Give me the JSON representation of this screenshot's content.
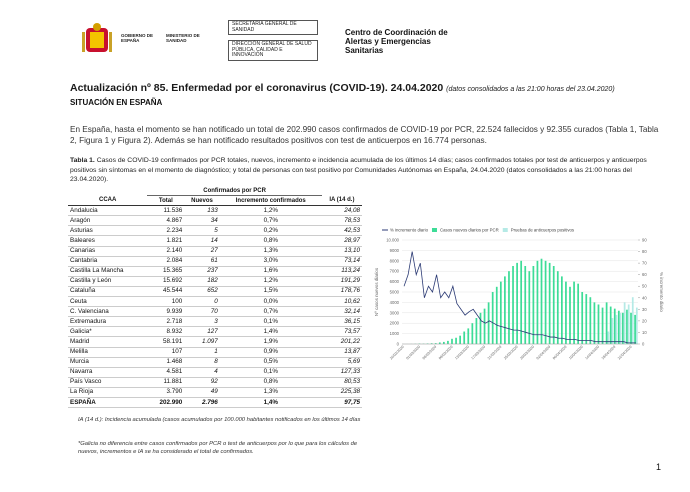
{
  "header": {
    "logo_gov": "GOBIERNO DE ESPAÑA",
    "logo_min": "MINISTERIO DE SANIDAD",
    "box1": "SECRETARIA GENERAL DE SANIDAD",
    "box2": "DIRECCIÓN GENERAL DE SALUD PÚBLICA, CALIDAD E INNOVACIÓN",
    "center": "Centro de Coordinación de Alertas y Emergencias Sanitarias"
  },
  "title": "Actualización nº 85. Enfermedad por el coronavirus (COVID-19). 24.04.2020",
  "title_note": "(datos consolidados a las 21:00 horas del 23.04.2020)",
  "section": "SITUACIÓN EN ESPAÑA",
  "paragraph": "En España, hasta el momento se han notificado un total de 202.990 casos confirmados de COVID-19 por PCR, 22.524 fallecidos y 92.355 curados (Tabla 1, Tabla 2, Figura 1 y Figura 2). Además se han notificado resultados positivos con test de anticuerpos en 16.774 personas.",
  "table": {
    "caption_label": "Tabla 1.",
    "caption": "Casos de COVID-19 confirmados por PCR totales, nuevos, incremento e incidencia acumulada de los últimos 14 días; casos confirmados totales por test de anticuerpos y anticuerpos positivos sin síntomas en el momento de diagnóstico; y total de personas con test positivo por Comunidades Autónomas en España, 24.04.2020 (datos consolidados a las 21:00 horas del 23.04.2020).",
    "group": "Confirmados por PCR",
    "columns": [
      "CCAA",
      "Total",
      "Nuevos",
      "Incremento confirmados",
      "IA (14 d.)"
    ],
    "rows": [
      [
        "Andalucia",
        "11.536",
        "133",
        "1,2%",
        "24,08"
      ],
      [
        "Aragón",
        "4.867",
        "34",
        "0,7%",
        "78,53"
      ],
      [
        "Asturias",
        "2.234",
        "5",
        "0,2%",
        "42,53"
      ],
      [
        "Baleares",
        "1.821",
        "14",
        "0,8%",
        "28,97"
      ],
      [
        "Canarias",
        "2.140",
        "27",
        "1,3%",
        "13,10"
      ],
      [
        "Cantabria",
        "2.084",
        "61",
        "3,0%",
        "73,14"
      ],
      [
        "Castilla La Mancha",
        "15.365",
        "237",
        "1,6%",
        "113,24"
      ],
      [
        "Castilla y León",
        "15.692",
        "182",
        "1,2%",
        "191,29"
      ],
      [
        "Cataluña",
        "45.544",
        "652",
        "1,5%",
        "178,76"
      ],
      [
        "Ceuta",
        "100",
        "0",
        "0,0%",
        "10,62"
      ],
      [
        "C. Valenciana",
        "9.939",
        "70",
        "0,7%",
        "32,14"
      ],
      [
        "Extremadura",
        "2.718",
        "3",
        "0,1%",
        "36,15"
      ],
      [
        "Galicia*",
        "8.932",
        "127",
        "1,4%",
        "73,57"
      ],
      [
        "Madrid",
        "58.191",
        "1.097",
        "1,9%",
        "201,22"
      ],
      [
        "Melilla",
        "107",
        "1",
        "0,9%",
        "13,87"
      ],
      [
        "Murcia",
        "1.468",
        "8",
        "0,5%",
        "5,69"
      ],
      [
        "Navarra",
        "4.581",
        "4",
        "0,1%",
        "127,33"
      ],
      [
        "País Vasco",
        "11.881",
        "92",
        "0,8%",
        "80,53"
      ],
      [
        "La Rioja",
        "3.790",
        "49",
        "1,3%",
        "225,38"
      ]
    ],
    "total": [
      "ESPAÑA",
      "202.990",
      "2.796",
      "1,4%",
      "97,75"
    ]
  },
  "footnotes": [
    "IA (14 d.): Incidencia acumulada (casos acumulados por 100.000 habitantes notificados en los últimos 14 días",
    "*Galicia no diferencia entre casos confirmados por PCR o test de anticuerpos por lo que para los cálculos de nuevos, incrementos e IA se ha considerado el total de confirmados."
  ],
  "page_number": "1",
  "chart_data": {
    "type": "bar",
    "ylabel": "Nº casos nuevos diarios",
    "y2label": "% incremento diario",
    "categories": [
      "26/02/2020",
      null,
      null,
      null,
      "01/03/2020",
      null,
      null,
      null,
      "05/03/2020",
      null,
      null,
      null,
      "09/03/2020",
      null,
      null,
      null,
      "13/03/2020",
      null,
      null,
      null,
      "17/03/2020",
      null,
      null,
      null,
      "21/03/2020",
      null,
      null,
      null,
      "25/03/2020",
      null,
      null,
      null,
      "29/03/2020",
      null,
      null,
      null,
      "02/04/2020",
      null,
      null,
      null,
      "06/04/2020",
      null,
      null,
      null,
      "10/04/2020",
      null,
      null,
      null,
      "14/04/2020",
      null,
      null,
      null,
      "18/04/2020",
      null,
      null,
      null,
      "22/04/2020",
      null
    ],
    "series": [
      {
        "name": "% incremento diario",
        "type": "line",
        "axis": "y2",
        "color": "#2b3a74",
        "values": [
          50,
          60,
          80,
          60,
          70,
          40,
          50,
          45,
          60,
          40,
          45,
          40,
          50,
          35,
          30,
          25,
          28,
          30,
          25,
          20,
          18,
          20,
          18,
          16,
          15,
          14,
          13,
          12,
          12,
          11,
          10,
          9,
          8,
          8,
          8,
          7,
          6,
          6,
          5,
          5,
          4,
          4,
          4,
          3,
          3,
          3,
          3,
          2,
          2,
          2,
          2,
          2,
          2,
          2,
          2,
          1,
          1,
          1
        ]
      },
      {
        "name": "Casos nuevos diarios por PCR",
        "color": "#3ddc97",
        "values": [
          2,
          3,
          8,
          20,
          40,
          30,
          50,
          70,
          80,
          150,
          200,
          300,
          500,
          600,
          800,
          1200,
          1500,
          2000,
          2500,
          3000,
          3400,
          4000,
          5000,
          5500,
          6000,
          6500,
          7000,
          7500,
          7800,
          8000,
          7500,
          7000,
          7500,
          8000,
          8200,
          8000,
          7800,
          7500,
          7000,
          6500,
          6000,
          5500,
          6000,
          5800,
          5000,
          4800,
          4500,
          4000,
          3800,
          3500,
          4000,
          3600,
          3400,
          3200,
          3000,
          3300,
          3000,
          2800
        ]
      },
      {
        "name": "Pruebas de anticuerpos positivos",
        "color": "#b5eae6",
        "values": [
          null,
          null,
          null,
          null,
          null,
          null,
          null,
          null,
          null,
          null,
          null,
          null,
          null,
          null,
          null,
          null,
          null,
          null,
          null,
          null,
          null,
          null,
          null,
          null,
          null,
          null,
          null,
          null,
          null,
          null,
          null,
          null,
          null,
          null,
          null,
          null,
          null,
          null,
          null,
          null,
          null,
          null,
          null,
          null,
          null,
          null,
          null,
          null,
          null,
          null,
          1200,
          2500,
          2800,
          3000,
          4000,
          3800,
          4500,
          3500
        ]
      }
    ],
    "ylim": [
      0,
      10000
    ],
    "yticks": [
      0,
      1000,
      2000,
      3000,
      4000,
      5000,
      6000,
      7000,
      8000,
      9000,
      {
        "value": 10000,
        "label": "10.000"
      }
    ],
    "y2lim": [
      0,
      90
    ],
    "y2ticks": [
      0,
      10,
      20,
      30,
      40,
      50,
      60,
      70,
      80,
      90
    ]
  }
}
